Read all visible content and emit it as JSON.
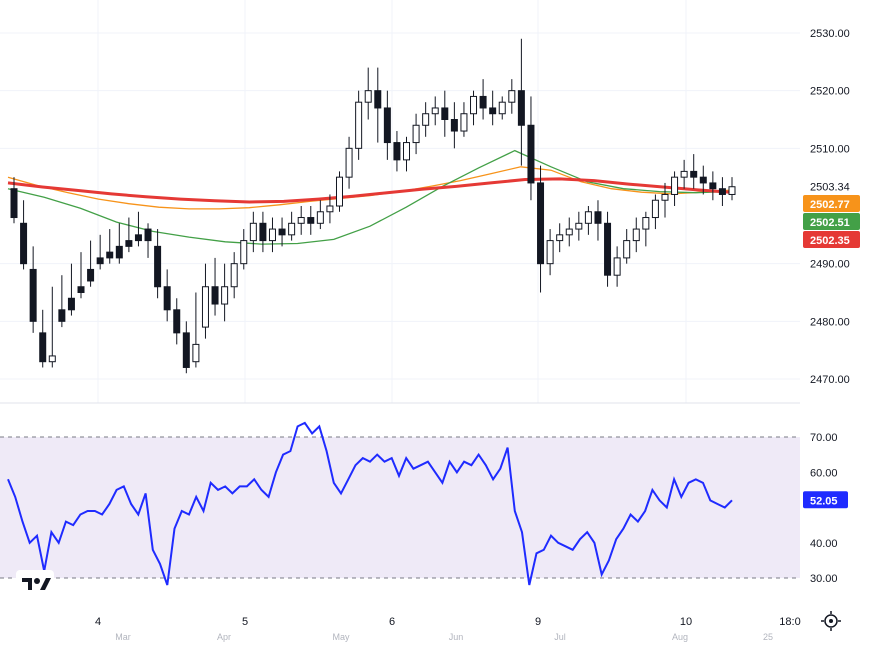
{
  "chart_data": [
    {
      "type": "candlestick",
      "price_axis": {
        "ticks": [
          2530,
          2520,
          2510,
          2490,
          2480,
          2470
        ],
        "ylim": [
          2465,
          2535
        ]
      },
      "last_price": 2503.34,
      "badges": [
        {
          "name": "ma-orange",
          "value": "2502.77",
          "color": "#f7931a"
        },
        {
          "name": "ma-green",
          "value": "2502.51",
          "color": "#43a047"
        },
        {
          "name": "ma-red",
          "value": "2502.35",
          "color": "#e53935"
        }
      ],
      "candles": [
        [
          2503,
          2505,
          2498,
          2497
        ],
        [
          2497,
          2501,
          2490,
          2489
        ],
        [
          2489,
          2493,
          2480,
          2478
        ],
        [
          2478,
          2482,
          2473,
          2472
        ],
        [
          2473,
          2486,
          2474,
          2472
        ],
        [
          2482,
          2488,
          2480,
          2479
        ],
        [
          2484,
          2490,
          2482,
          2481
        ],
        [
          2486,
          2492,
          2485,
          2484
        ],
        [
          2489,
          2494,
          2487,
          2486
        ],
        [
          2491,
          2495,
          2490,
          2489
        ],
        [
          2492,
          2496,
          2491,
          2490
        ],
        [
          2493,
          2497,
          2491,
          2490
        ],
        [
          2494,
          2498,
          2493,
          2492
        ],
        [
          2495,
          2499,
          2494,
          2493
        ],
        [
          2496,
          2497,
          2494,
          2491
        ],
        [
          2493,
          2496,
          2486,
          2484
        ],
        [
          2486,
          2489,
          2482,
          2480
        ],
        [
          2482,
          2484,
          2478,
          2476
        ],
        [
          2478,
          2480,
          2472,
          2471
        ],
        [
          2473,
          2485,
          2476,
          2472
        ],
        [
          2479,
          2490,
          2486,
          2477
        ],
        [
          2486,
          2491,
          2483,
          2481
        ],
        [
          2483,
          2490,
          2486,
          2480
        ],
        [
          2486,
          2492,
          2490,
          2484
        ],
        [
          2490,
          2496,
          2494,
          2489
        ],
        [
          2494,
          2499,
          2497,
          2492
        ],
        [
          2497,
          2499,
          2494,
          2492
        ],
        [
          2494,
          2498,
          2496,
          2492
        ],
        [
          2496,
          2498,
          2495,
          2493
        ],
        [
          2495,
          2499,
          2497,
          2494
        ],
        [
          2497,
          2500,
          2498,
          2495
        ],
        [
          2498,
          2500,
          2497,
          2495
        ],
        [
          2497,
          2501,
          2499,
          2496
        ],
        [
          2499,
          2502,
          2500,
          2497
        ],
        [
          2500,
          2506,
          2505,
          2499
        ],
        [
          2505,
          2512,
          2510,
          2503
        ],
        [
          2510,
          2520,
          2518,
          2508
        ],
        [
          2518,
          2524,
          2520,
          2515
        ],
        [
          2520,
          2524,
          2517,
          2511
        ],
        [
          2517,
          2520,
          2511,
          2508
        ],
        [
          2511,
          2513,
          2508,
          2506
        ],
        [
          2508,
          2512,
          2511,
          2506
        ],
        [
          2511,
          2516,
          2514,
          2509
        ],
        [
          2514,
          2518,
          2516,
          2512
        ],
        [
          2516,
          2519,
          2517,
          2514
        ],
        [
          2517,
          2520,
          2515,
          2512
        ],
        [
          2515,
          2518,
          2513,
          2510
        ],
        [
          2513,
          2518,
          2516,
          2512
        ],
        [
          2516,
          2520,
          2519,
          2514
        ],
        [
          2519,
          2522,
          2517,
          2515
        ],
        [
          2517,
          2520,
          2516,
          2514
        ],
        [
          2516,
          2519,
          2518,
          2515
        ],
        [
          2518,
          2522,
          2520,
          2516
        ],
        [
          2520,
          2529,
          2514,
          2507
        ],
        [
          2514,
          2519,
          2504,
          2501
        ],
        [
          2504,
          2507,
          2490,
          2485
        ],
        [
          2490,
          2496,
          2494,
          2488
        ],
        [
          2494,
          2497,
          2495,
          2492
        ],
        [
          2495,
          2498,
          2496,
          2493
        ],
        [
          2496,
          2499,
          2497,
          2494
        ],
        [
          2497,
          2500,
          2499,
          2495
        ],
        [
          2499,
          2501,
          2497,
          2494
        ],
        [
          2497,
          2499,
          2488,
          2486
        ],
        [
          2488,
          2493,
          2491,
          2486
        ],
        [
          2491,
          2496,
          2494,
          2490
        ],
        [
          2494,
          2498,
          2496,
          2492
        ],
        [
          2496,
          2499,
          2498,
          2493
        ],
        [
          2498,
          2502,
          2501,
          2496
        ],
        [
          2501,
          2504,
          2502,
          2498
        ],
        [
          2502,
          2506,
          2505,
          2500
        ],
        [
          2505,
          2508,
          2506,
          2503
        ],
        [
          2506,
          2509,
          2505,
          2503
        ],
        [
          2505,
          2507,
          2504,
          2502
        ],
        [
          2504,
          2506,
          2503,
          2501
        ],
        [
          2503,
          2505,
          2502,
          2500
        ],
        [
          2502,
          2505,
          2503.34,
          2501
        ]
      ],
      "ma_series": [
        {
          "name": "orange",
          "color": "#f7931a",
          "values": [
            2505,
            2503.5,
            2502.3,
            2501.2,
            2500.4,
            2499.8,
            2499.5,
            2499.5,
            2499.7,
            2500.2,
            2500.8,
            2501.3,
            2501.8,
            2502.5,
            2503.4,
            2504.4,
            2505.6,
            2506.8,
            2506.2,
            2504.2,
            2503.0,
            2502.4,
            2502.1,
            2502.4,
            2502.77
          ]
        },
        {
          "name": "green",
          "color": "#43a047",
          "values": [
            2503,
            2501.5,
            2499.6,
            2497.2,
            2495.6,
            2494.6,
            2493.8,
            2493.4,
            2493.5,
            2494.2,
            2496.5,
            2499.8,
            2503.4,
            2506.6,
            2509.6,
            2506.8,
            2504.2,
            2503.0,
            2502.5,
            2502.3,
            2502.51
          ]
        },
        {
          "name": "red",
          "color": "#e53935",
          "values": [
            2504,
            2503.3,
            2502.7,
            2502.1,
            2501.6,
            2501.2,
            2500.9,
            2500.7,
            2500.8,
            2501.2,
            2501.7,
            2502.3,
            2502.9,
            2503.4,
            2504.0,
            2504.6,
            2504.7,
            2504.4,
            2503.8,
            2503.3,
            2502.8,
            2502.35
          ]
        }
      ]
    },
    {
      "type": "line",
      "indicator_axis": {
        "ticks": [
          70.0,
          60.0,
          40.0,
          30.0
        ],
        "ylim": [
          25,
          75
        ]
      },
      "bands": [
        30,
        70
      ],
      "last_value": "52.05",
      "line_color": "#1f2bff",
      "band_fill": "#efeaf7",
      "values": [
        58,
        53,
        46,
        40,
        42,
        32,
        43,
        40,
        46,
        45,
        48,
        49,
        49,
        48,
        51,
        55,
        56,
        51,
        48,
        54,
        38,
        34,
        28,
        44,
        49,
        48,
        53,
        49,
        57,
        55,
        56,
        54,
        56,
        56,
        58,
        55,
        53,
        60,
        65,
        66,
        73,
        74,
        71,
        73,
        66,
        57,
        54,
        58,
        62,
        64,
        63,
        65,
        63,
        64,
        59,
        64,
        61,
        62,
        63,
        60,
        57,
        63,
        60,
        63,
        62,
        65,
        62,
        58,
        61,
        67,
        49,
        43,
        28,
        37,
        38,
        42,
        40,
        39,
        38,
        41,
        43,
        40,
        31,
        35,
        41,
        44,
        48,
        46,
        49,
        55,
        52,
        50,
        58,
        53,
        57,
        58,
        57,
        52,
        51,
        50,
        52.05
      ]
    }
  ],
  "time_axis": {
    "labels": [
      "4",
      "5",
      "6",
      "9",
      "10",
      "18:0"
    ],
    "sub_labels": [
      "Mar",
      "Apr",
      "May",
      "Jun",
      "Jul",
      "Aug",
      "25"
    ]
  },
  "icons": [
    "tradingview-logo-icon",
    "settings-gear-icon"
  ]
}
